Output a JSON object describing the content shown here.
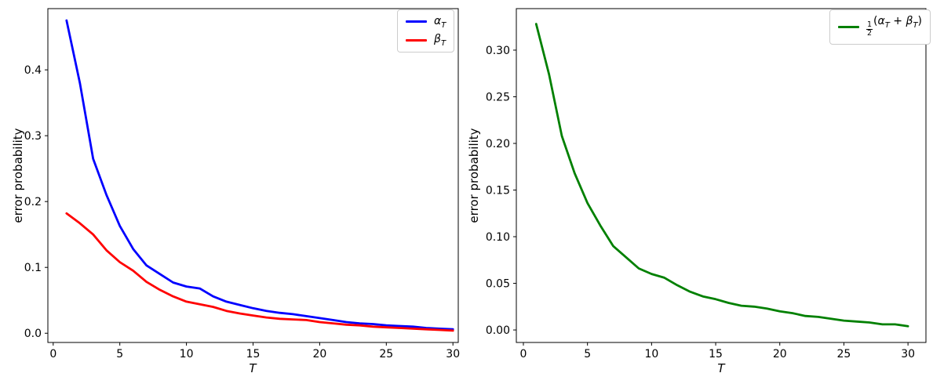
{
  "figure": {
    "background": "#ffffff",
    "text_color": "#000000",
    "spine_color": "#000000",
    "legend_border_color": "#cccccc"
  },
  "chart_data": [
    {
      "type": "line",
      "title": "",
      "xlabel": "T",
      "ylabel": "error probability",
      "grid": false,
      "legend_position": "upper-right",
      "xlim": [
        -0.4,
        30.4
      ],
      "ylim": [
        -0.014,
        0.493
      ],
      "xticks": [
        0,
        5,
        10,
        15,
        20,
        25,
        30
      ],
      "xtick_labels": [
        "0",
        "5",
        "10",
        "15",
        "20",
        "25",
        "30"
      ],
      "yticks": [
        0.0,
        0.1,
        0.2,
        0.3,
        0.4
      ],
      "ytick_labels": [
        "0.0",
        "0.1",
        "0.2",
        "0.3",
        "0.4"
      ],
      "x": [
        1,
        2,
        3,
        4,
        5,
        6,
        7,
        8,
        9,
        10,
        11,
        12,
        13,
        14,
        15,
        16,
        17,
        18,
        19,
        20,
        21,
        22,
        23,
        24,
        25,
        26,
        27,
        28,
        29,
        30
      ],
      "series": [
        {
          "name": "α_T",
          "color": "#0000ff",
          "values": [
            0.475,
            0.38,
            0.265,
            0.21,
            0.163,
            0.128,
            0.103,
            0.09,
            0.077,
            0.071,
            0.068,
            0.056,
            0.048,
            0.043,
            0.038,
            0.034,
            0.031,
            0.029,
            0.026,
            0.023,
            0.02,
            0.017,
            0.015,
            0.014,
            0.012,
            0.011,
            0.01,
            0.008,
            0.007,
            0.006
          ]
        },
        {
          "name": "β_T",
          "color": "#ff0000",
          "values": [
            0.182,
            0.167,
            0.15,
            0.126,
            0.108,
            0.095,
            0.078,
            0.066,
            0.056,
            0.048,
            0.044,
            0.04,
            0.034,
            0.03,
            0.027,
            0.024,
            0.022,
            0.021,
            0.02,
            0.017,
            0.015,
            0.013,
            0.012,
            0.01,
            0.009,
            0.008,
            0.007,
            0.006,
            0.005,
            0.004
          ]
        }
      ]
    },
    {
      "type": "line",
      "title": "",
      "xlabel": "T",
      "ylabel": "error probability",
      "grid": false,
      "legend_position": "upper-right",
      "xlim": [
        -0.55,
        31.4
      ],
      "ylim": [
        -0.0134,
        0.3445
      ],
      "xticks": [
        0,
        5,
        10,
        15,
        20,
        25,
        30
      ],
      "xtick_labels": [
        "0",
        "5",
        "10",
        "15",
        "20",
        "25",
        "30"
      ],
      "yticks": [
        0.0,
        0.05,
        0.1,
        0.15,
        0.2,
        0.25,
        0.3
      ],
      "ytick_labels": [
        "0.00",
        "0.05",
        "0.10",
        "0.15",
        "0.20",
        "0.25",
        "0.30"
      ],
      "x": [
        1,
        2,
        3,
        4,
        5,
        6,
        7,
        8,
        9,
        10,
        11,
        12,
        13,
        14,
        15,
        16,
        17,
        18,
        19,
        20,
        21,
        22,
        23,
        24,
        25,
        26,
        27,
        28,
        29,
        30
      ],
      "series": [
        {
          "name": "½(α_T + β_T)",
          "color": "#008000",
          "values": [
            0.328,
            0.274,
            0.208,
            0.168,
            0.136,
            0.112,
            0.09,
            0.078,
            0.066,
            0.06,
            0.056,
            0.048,
            0.041,
            0.036,
            0.033,
            0.029,
            0.026,
            0.025,
            0.023,
            0.02,
            0.018,
            0.015,
            0.014,
            0.012,
            0.01,
            0.009,
            0.008,
            0.006,
            0.006,
            0.004
          ]
        }
      ]
    }
  ]
}
